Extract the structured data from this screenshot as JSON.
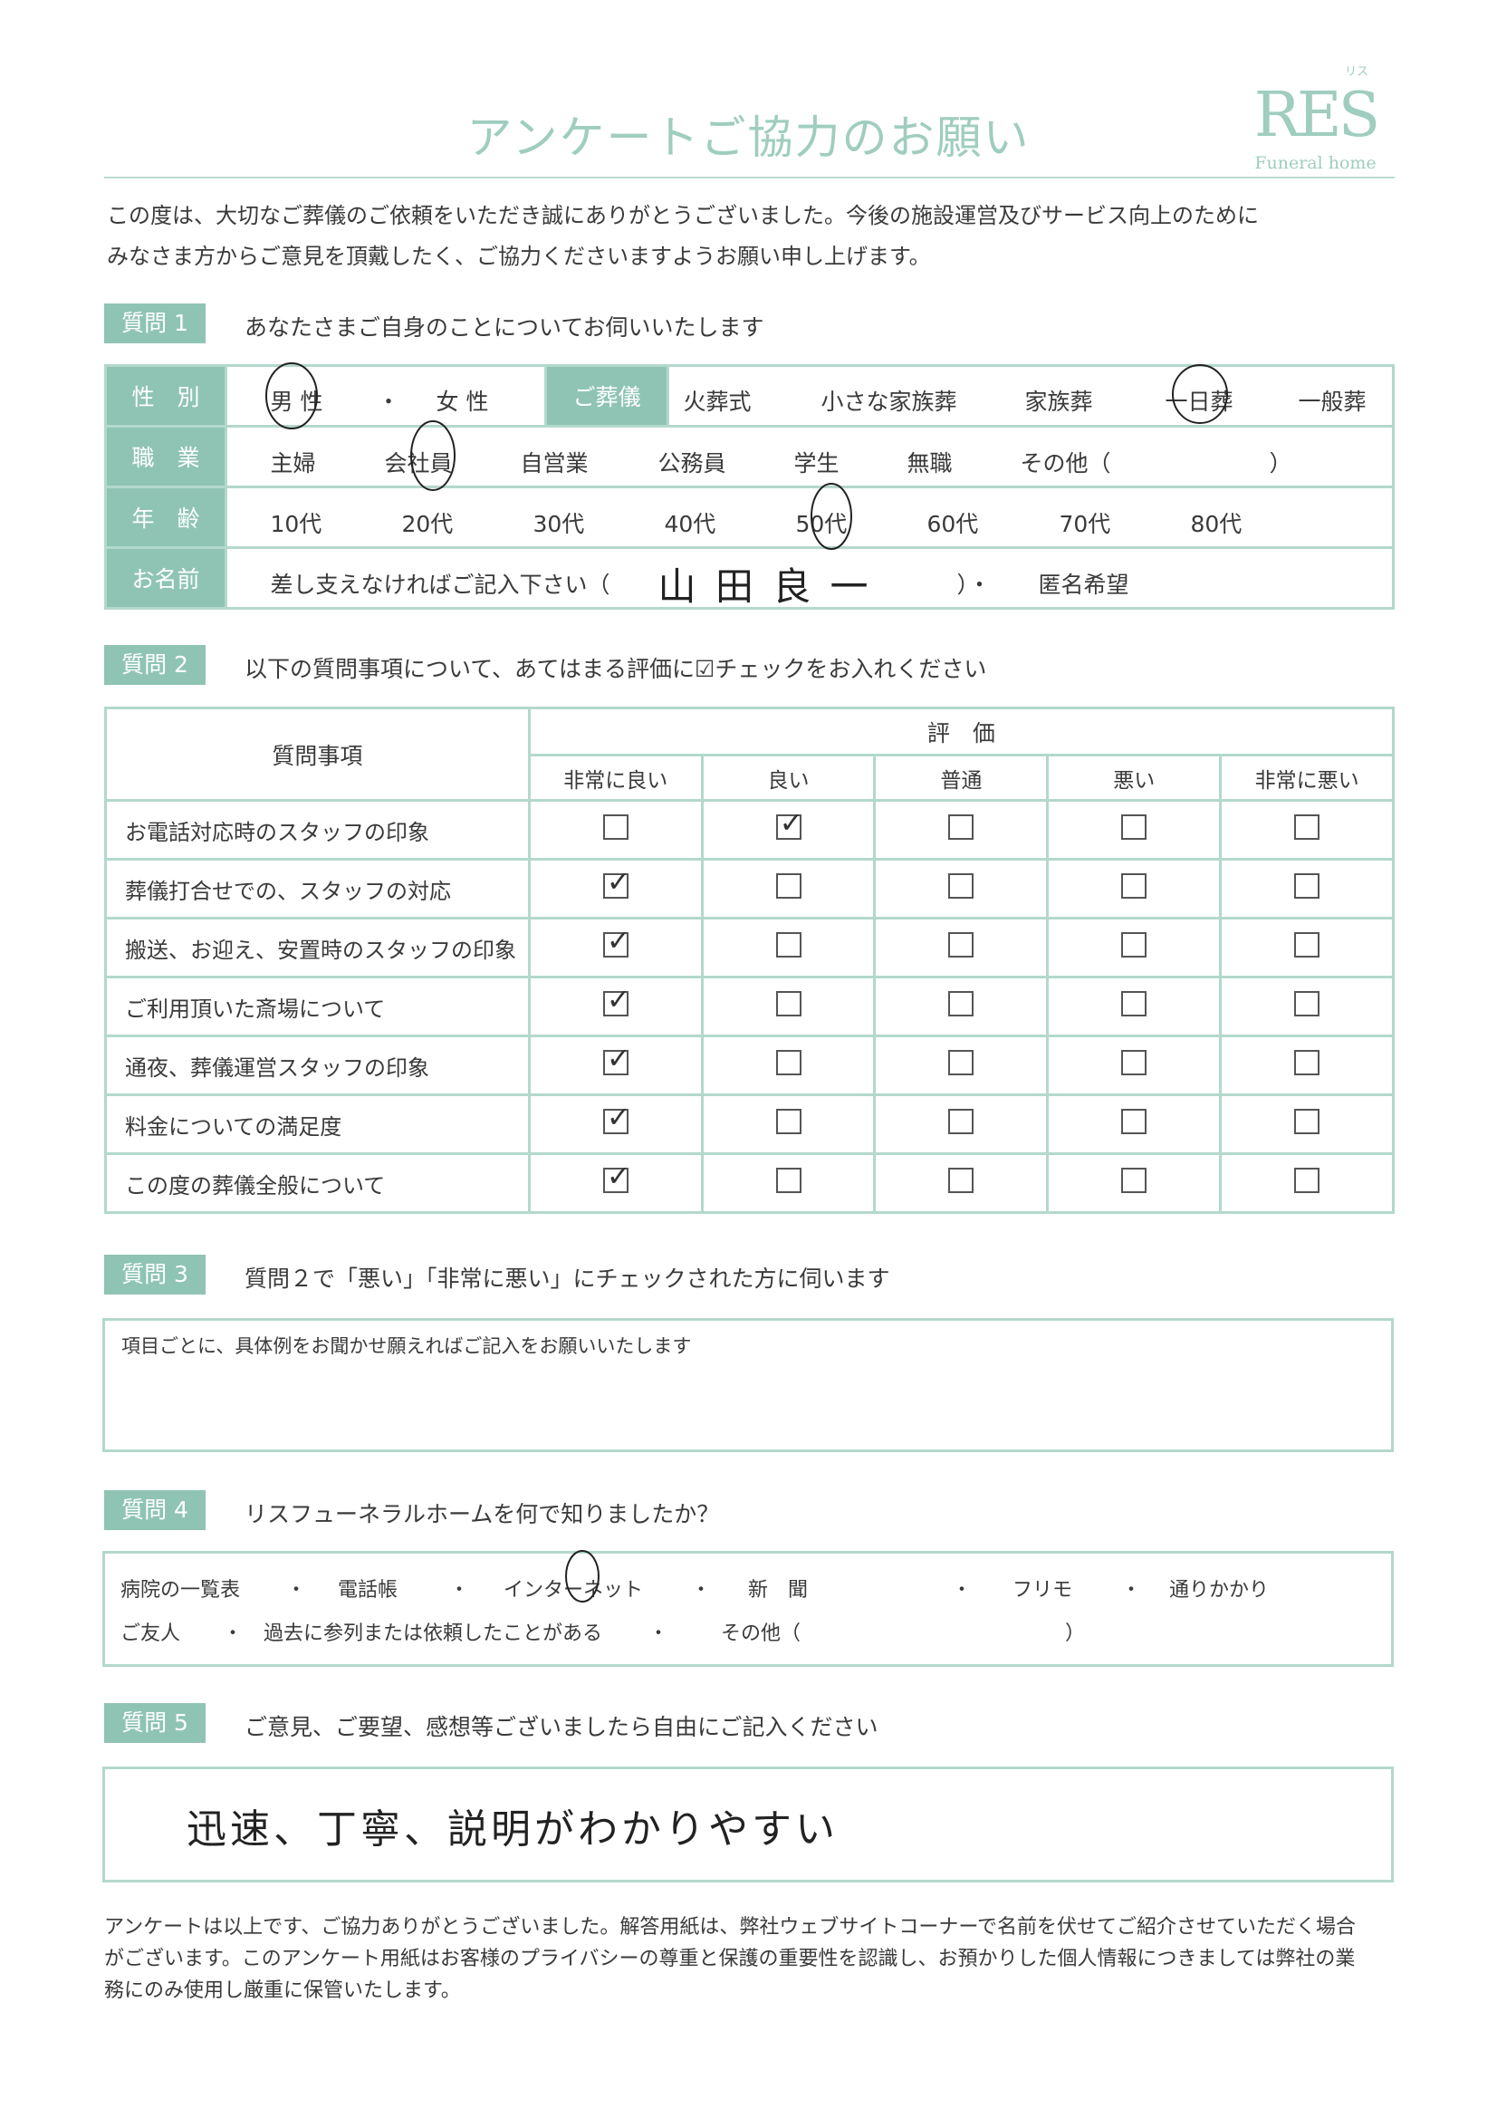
{
  "title": "アンケートご協力のお願い",
  "logo": {
    "main": "RES",
    "sub": "Funeral home",
    "kana": "リス"
  },
  "intro": [
    "この度は、大切なご葬儀のご依頼をいただき誠にありがとうございました。今後の施設運営及びサービス向上のために",
    "みなさま方からご意見を頂戴したく、ご協力くださいますようお願い申し上げます。"
  ],
  "q1": {
    "badge": "質問 1",
    "text": "あなたさまご自身のことについてお伺いいたします",
    "gender": {
      "label": "性　別",
      "male": "男 性",
      "female": "女 性",
      "sep": "・",
      "selected": "男 性"
    },
    "funeral": {
      "label": "ご葬儀",
      "options": [
        "火葬式",
        "小さな家族葬",
        "家族葬",
        "一日葬",
        "一般葬"
      ],
      "selected": "一日葬"
    },
    "job": {
      "label": "職　業",
      "options": [
        "主婦",
        "会社員",
        "自営業",
        "公務員",
        "学生",
        "無職",
        "その他（"
      ],
      "close": "）",
      "selected": "会社員"
    },
    "age": {
      "label": "年　齢",
      "options": [
        "10代",
        "20代",
        "30代",
        "40代",
        "50代",
        "60代",
        "70代",
        "80代"
      ],
      "selected": "50代"
    },
    "name": {
      "label": "お名前",
      "prompt": "差し支えなければご記入下さい（",
      "value": "山 田 良 一",
      "close": "）・",
      "anon": "匿名希望"
    }
  },
  "q2": {
    "badge": "質問 2",
    "text": "以下の質問事項について、あてはまる評価に☑チェックをお入れください",
    "item_header": "質問事項",
    "eval_header": "評　価",
    "columns": [
      "非常に良い",
      "良い",
      "普通",
      "悪い",
      "非常に悪い"
    ],
    "rows": [
      {
        "item": "お電話対応時のスタッフの印象",
        "checked": 1
      },
      {
        "item": "葬儀打合せでの、スタッフの対応",
        "checked": 0
      },
      {
        "item": "搬送、お迎え、安置時のスタッフの印象",
        "checked": 0
      },
      {
        "item": "ご利用頂いた斎場について",
        "checked": 0
      },
      {
        "item": "通夜、葬儀運営スタッフの印象",
        "checked": 0
      },
      {
        "item": "料金についての満足度",
        "checked": 0
      },
      {
        "item": "この度の葬儀全般について",
        "checked": 0
      }
    ]
  },
  "q3": {
    "badge": "質問 3",
    "text": "質問２で「悪い」「非常に悪い」にチェックされた方に伺います",
    "hint": "項目ごとに、具体例をお聞かせ願えればご記入をお願いいたします"
  },
  "q4": {
    "badge": "質問 4",
    "text": "リスフューネラルホームを何で知りましたか？",
    "row1": [
      "病院の一覧表",
      "・",
      "電話帳",
      "・",
      "インターネット",
      "・",
      "新　聞",
      "・",
      "フリモ",
      "・",
      "通りかかり"
    ],
    "row2": [
      "ご友人",
      "・",
      "過去に参列または依頼したことがある",
      "・",
      "その他（",
      "）"
    ],
    "selected": "インターネット"
  },
  "q5": {
    "badge": "質問 5",
    "text": "ご意見、ご要望、感想等ございましたら自由にご記入ください",
    "answer": "迅速、丁寧、説明がわかりやすい"
  },
  "footer": [
    "アンケートは以上です、ご協力ありがとうございました。解答用紙は、弊社ウェブサイトコーナーで名前を伏せてご紹介させていただく場合",
    "がございます。このアンケート用紙はお客様のプライバシーの尊重と保護の重要性を認識し、お預かりした個人情報につきましては弊社の業",
    "務にのみ使用し厳重に保管いたします。"
  ],
  "colors": {
    "accent": "#8fc4b4",
    "border": "#b3d8cc",
    "title": "#9fcdbf"
  }
}
